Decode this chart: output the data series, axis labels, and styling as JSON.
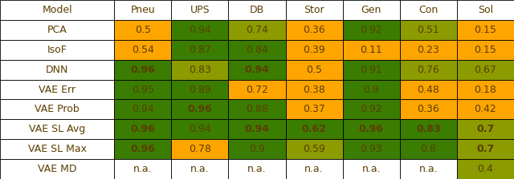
{
  "col_headers": [
    "Model",
    "Pneu",
    "UPS",
    "DB",
    "Stor",
    "Gen",
    "Con",
    "Sol"
  ],
  "rows": [
    [
      "PCA",
      "0.5",
      "0.94",
      "0.74",
      "0.36",
      "0.92",
      "0.51",
      "0.15"
    ],
    [
      "IsoF",
      "0.54",
      "0.87",
      "0.84",
      "0.39",
      "0.11",
      "0.23",
      "0.15"
    ],
    [
      "DNN",
      "0.96",
      "0.83",
      "0.94",
      "0.5",
      "0.91",
      "0.76",
      "0.67"
    ],
    [
      "VAE Err",
      "0.95",
      "0.89",
      "0.72",
      "0.38",
      "0.9",
      "0.48",
      "0.18"
    ],
    [
      "VAE Prob",
      "0.94",
      "0.96",
      "0.88",
      "0.37",
      "0.92",
      "0.36",
      "0.42"
    ],
    [
      "VAE SL Avg",
      "0.96",
      "0.94",
      "0.94",
      "0.62",
      "0.96",
      "0.83",
      "0.7"
    ],
    [
      "VAE SL Max",
      "0.96",
      "0.78",
      "0.9",
      "0.59",
      "0.93",
      "0.8",
      "0.7"
    ],
    [
      "VAE MD",
      "n.a.",
      "n.a.",
      "n.a.",
      "n.a.",
      "n.a.",
      "n.a.",
      "0.4"
    ]
  ],
  "bold": [
    [
      false,
      false,
      false,
      false,
      false,
      false,
      false,
      false
    ],
    [
      false,
      false,
      false,
      false,
      false,
      false,
      false,
      false
    ],
    [
      false,
      true,
      false,
      true,
      false,
      false,
      false,
      false
    ],
    [
      false,
      false,
      false,
      false,
      false,
      false,
      false,
      false
    ],
    [
      false,
      false,
      true,
      false,
      false,
      false,
      false,
      false
    ],
    [
      false,
      true,
      false,
      true,
      true,
      true,
      true,
      true
    ],
    [
      false,
      true,
      false,
      false,
      false,
      false,
      false,
      true
    ],
    [
      false,
      false,
      false,
      false,
      false,
      false,
      false,
      false
    ]
  ],
  "colors": [
    [
      "white",
      "#FFA500",
      "#3a7d00",
      "#8B9B00",
      "#FFA500",
      "#3a7d00",
      "#8B9B00",
      "#FFA500"
    ],
    [
      "white",
      "#FFA500",
      "#3a7d00",
      "#3a7d00",
      "#FFA500",
      "#FFA500",
      "#FFA500",
      "#FFA500"
    ],
    [
      "white",
      "#3a7d00",
      "#8B9B00",
      "#3a7d00",
      "#FFA500",
      "#3a7d00",
      "#8B9B00",
      "#8B9B00"
    ],
    [
      "white",
      "#3a7d00",
      "#3a7d00",
      "#FFA500",
      "#FFA500",
      "#3a7d00",
      "#FFA500",
      "#FFA500"
    ],
    [
      "white",
      "#3a7d00",
      "#3a7d00",
      "#3a7d00",
      "#FFA500",
      "#3a7d00",
      "#FFA500",
      "#FFA500"
    ],
    [
      "white",
      "#3a7d00",
      "#3a7d00",
      "#3a7d00",
      "#3a7d00",
      "#3a7d00",
      "#3a7d00",
      "#8B9B00"
    ],
    [
      "white",
      "#3a7d00",
      "#FFA500",
      "#3a7d00",
      "#8B9B00",
      "#3a7d00",
      "#3a7d00",
      "#8B9B00"
    ],
    [
      "white",
      "white",
      "white",
      "white",
      "white",
      "white",
      "white",
      "#8B9B00"
    ]
  ],
  "text_color": "#5C3D00",
  "col_widths_rel": [
    2.0,
    1.0,
    1.0,
    1.0,
    1.0,
    1.0,
    1.0,
    1.0
  ],
  "figure_width": 6.4,
  "figure_height": 2.24,
  "dpi": 100,
  "fontsize": 9.0
}
